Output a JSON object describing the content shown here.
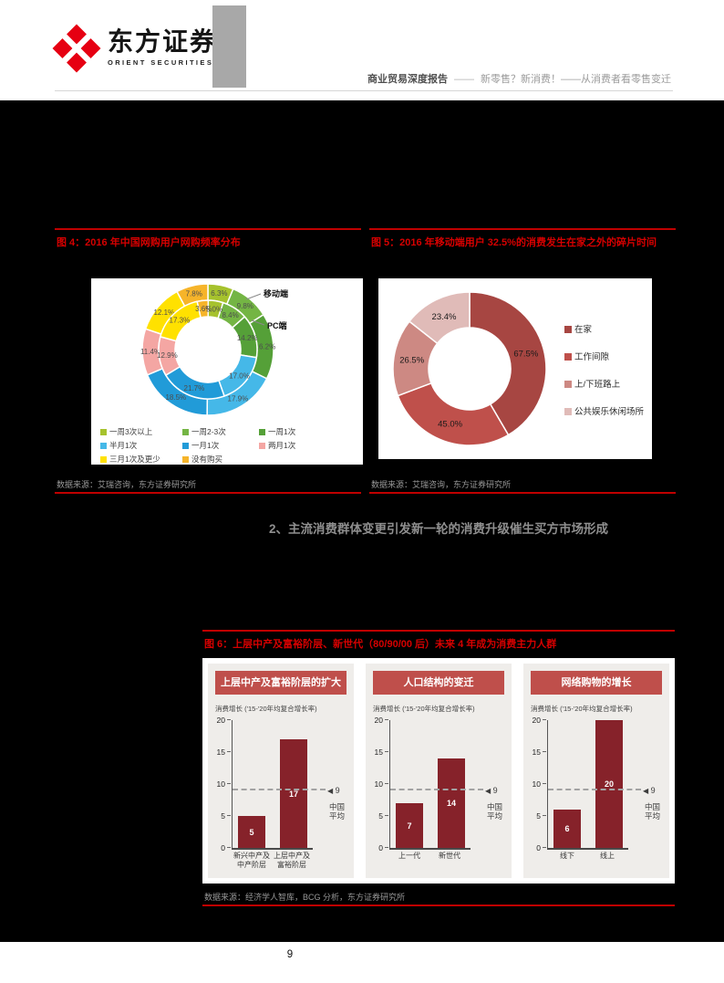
{
  "header": {
    "brand_cn": "东方证券",
    "brand_en": "ORIENT SECURITIES",
    "report_type": "商业贸易深度报告",
    "separator": "——",
    "report_title": "新零售？新消费！——从消费者看零售变迁"
  },
  "colors": {
    "accent_red": "#c00000",
    "figure_title_red": "#d60000",
    "banner_red": "#bf4f4b",
    "bar_maroon": "#86222a",
    "panel_gray": "#efedea",
    "source_gray": "#999999"
  },
  "figure4": {
    "title": "图 4：2016 年中国网购用户网购频率分布",
    "source": "数据来源：艾瑞咨询，东方证券研究所",
    "ring_labels": {
      "outer": "移动端",
      "inner": "PC端"
    }
  },
  "figure5": {
    "title": "图 5：2016 年移动端用户 32.5%的消费发生在家之外的碎片时间",
    "source": "数据来源：艾瑞咨询，东方证券研究所"
  },
  "section_heading": "2、主流消费群体变更引发新一轮的消费升级催生买方市场形成",
  "figure6": {
    "title": "图 6：上层中产及富裕阶层、新世代（80/90/00 后）未来 4 年成为消费主力人群",
    "source": "数据来源：经济学人智库，BCG 分析，东方证券研究所"
  },
  "footer": {
    "page_number": "9"
  },
  "chart_data": [
    {
      "id": "fig4",
      "type": "pie",
      "subtype": "double-donut",
      "title": "2016 年中国网购用户网购频率分布",
      "categories": [
        "一周3次以上",
        "一周2-3次",
        "一周1次",
        "半月1次",
        "一月1次",
        "两月1次",
        "三月1次及更少",
        "没有购买"
      ],
      "colors": [
        "#a6c22d",
        "#74b544",
        "#55a038",
        "#45b8e8",
        "#219bd8",
        "#f4a6a3",
        "#ffe100",
        "#f6b42a"
      ],
      "series": [
        {
          "name": "移动端",
          "ring": "outer",
          "values": [
            6.3,
            9.8,
            16.2,
            17.9,
            18.5,
            11.4,
            12.1,
            7.8
          ]
        },
        {
          "name": "PC端",
          "ring": "inner",
          "values": [
            5.0,
            8.4,
            14.2,
            17.0,
            21.7,
            12.9,
            17.3,
            3.6
          ]
        }
      ],
      "legend_position": "bottom"
    },
    {
      "id": "fig5",
      "type": "pie",
      "subtype": "donut",
      "title": "2016 年移动端用户 32.5%的消费发生在家之外的碎片时间",
      "categories": [
        "在家",
        "工作间隙",
        "上/下班路上",
        "公共娱乐休闲场所"
      ],
      "values": [
        67.5,
        45.0,
        26.5,
        23.4
      ],
      "colors": [
        "#a74642",
        "#bf504b",
        "#cd8983",
        "#e0bbb8"
      ],
      "legend_position": "right"
    },
    {
      "id": "fig6",
      "type": "bar",
      "ylabel": "消费增长 ('15-'20年均复合增长率)",
      "ylim": [
        0,
        20
      ],
      "yticks": [
        0,
        5,
        10,
        15,
        20
      ],
      "reference_line": {
        "value": 9,
        "label": "中国平均",
        "marker": "◀",
        "marker_value": "9"
      },
      "panels": [
        {
          "header": "上层中产及富裕阶层的扩大",
          "categories": [
            [
              "新兴中产及",
              "中产阶层"
            ],
            [
              "上层中产及",
              "富裕阶层"
            ]
          ],
          "values": [
            5,
            17
          ]
        },
        {
          "header": "人口结构的变迁",
          "categories": [
            [
              "上一代"
            ],
            [
              "新世代"
            ]
          ],
          "values": [
            7,
            14
          ]
        },
        {
          "header": "网络购物的增长",
          "categories": [
            [
              "线下"
            ],
            [
              "线上"
            ]
          ],
          "values": [
            6,
            20
          ]
        }
      ]
    }
  ]
}
